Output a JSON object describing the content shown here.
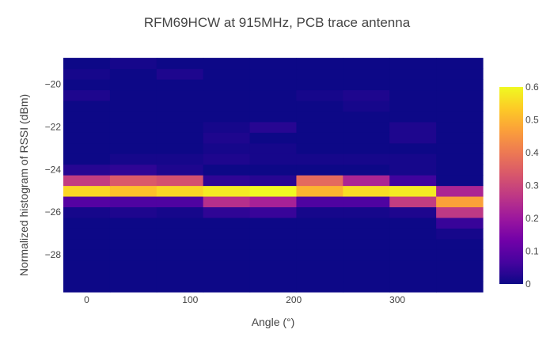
{
  "chart_data": {
    "type": "heatmap",
    "title": "RFM69HCW at 915MHz, PCB trace antenna",
    "xlabel": "Angle (°)",
    "ylabel": "Normalized histogram of RSSI (dBm)",
    "x_ticks": [
      0,
      100,
      200,
      300
    ],
    "y_ticks": [
      -20,
      -22,
      -24,
      -26,
      -28
    ],
    "y_tick_labels": [
      "−20",
      "−22",
      "−24",
      "−26",
      "−28"
    ],
    "x_range": [
      -22.5,
      382.5
    ],
    "y_range": [
      -29.75,
      -19.75
    ],
    "x_bins": [
      0,
      45,
      90,
      135,
      180,
      225,
      270,
      315,
      360
    ],
    "bin_width": 45,
    "y_bin_start": -29.75,
    "y_bin_height": 0.5,
    "z": [
      [
        0,
        0,
        0,
        0,
        0,
        0,
        0,
        0,
        0
      ],
      [
        0,
        0,
        0,
        0,
        0,
        0,
        0,
        0,
        0
      ],
      [
        0,
        0,
        0,
        0,
        0,
        0,
        0,
        0,
        0
      ],
      [
        0,
        0,
        0,
        0,
        0,
        0,
        0,
        0,
        0
      ],
      [
        0,
        0,
        0,
        0,
        0,
        0,
        0,
        0,
        0
      ],
      [
        0,
        0,
        0,
        0,
        0,
        0,
        0,
        0,
        0.01
      ],
      [
        0,
        0,
        0,
        0,
        0,
        0,
        0,
        0,
        0.05
      ],
      [
        0.01,
        0.02,
        0.01,
        0.04,
        0.05,
        0.01,
        0.01,
        0.02,
        0.27
      ],
      [
        0.09,
        0.08,
        0.08,
        0.25,
        0.22,
        0.08,
        0.08,
        0.28,
        0.47
      ],
      [
        0.55,
        0.52,
        0.55,
        0.58,
        0.6,
        0.5,
        0.56,
        0.58,
        0.23
      ],
      [
        0.28,
        0.34,
        0.32,
        0.04,
        0.03,
        0.37,
        0.23,
        0.06,
        0
      ],
      [
        0.03,
        0.04,
        0.02,
        0,
        0,
        0,
        0,
        0.01,
        0
      ],
      [
        0,
        0.01,
        0.01,
        0.02,
        0.01,
        0.01,
        0.01,
        0.01,
        0
      ],
      [
        0,
        0,
        0,
        0.01,
        0.01,
        0,
        0,
        0,
        0
      ],
      [
        0,
        0,
        0,
        0.02,
        0,
        0,
        0,
        0.02,
        0
      ],
      [
        0,
        0,
        0,
        0.01,
        0.03,
        0,
        0,
        0.02,
        0
      ],
      [
        0,
        0,
        0,
        0,
        0,
        0,
        0,
        0,
        0
      ],
      [
        0,
        0,
        0,
        0,
        0,
        0,
        0.01,
        0,
        0
      ],
      [
        0.02,
        0,
        0,
        0,
        0,
        0.01,
        0.02,
        0,
        0
      ],
      [
        0,
        0,
        0,
        0,
        0,
        0,
        0,
        0,
        0
      ],
      [
        0.01,
        0,
        0.02,
        0,
        0,
        0,
        0,
        0,
        0
      ],
      [
        0,
        0.01,
        0,
        0,
        0,
        0,
        0,
        0,
        0
      ]
    ],
    "colorscale": [
      [
        0.0,
        "#0d0887"
      ],
      [
        0.1111,
        "#46039f"
      ],
      [
        0.2222,
        "#7201a8"
      ],
      [
        0.3333,
        "#9c179e"
      ],
      [
        0.4444,
        "#bd3786"
      ],
      [
        0.5556,
        "#d8576b"
      ],
      [
        0.6667,
        "#ed7953"
      ],
      [
        0.7778,
        "#fb9f3a"
      ],
      [
        0.8889,
        "#fdca26"
      ],
      [
        1.0,
        "#f0f921"
      ]
    ],
    "zmin": 0,
    "zmax": 0.6,
    "colorbar_ticks": [
      0,
      0.1,
      0.2,
      0.3,
      0.4,
      0.5,
      0.6
    ],
    "colorbar_tick_labels": [
      "0",
      "0.1",
      "0.2",
      "0.3",
      "0.4",
      "0.5",
      "0.6"
    ],
    "grid": false,
    "legend": "colorbar-right"
  }
}
